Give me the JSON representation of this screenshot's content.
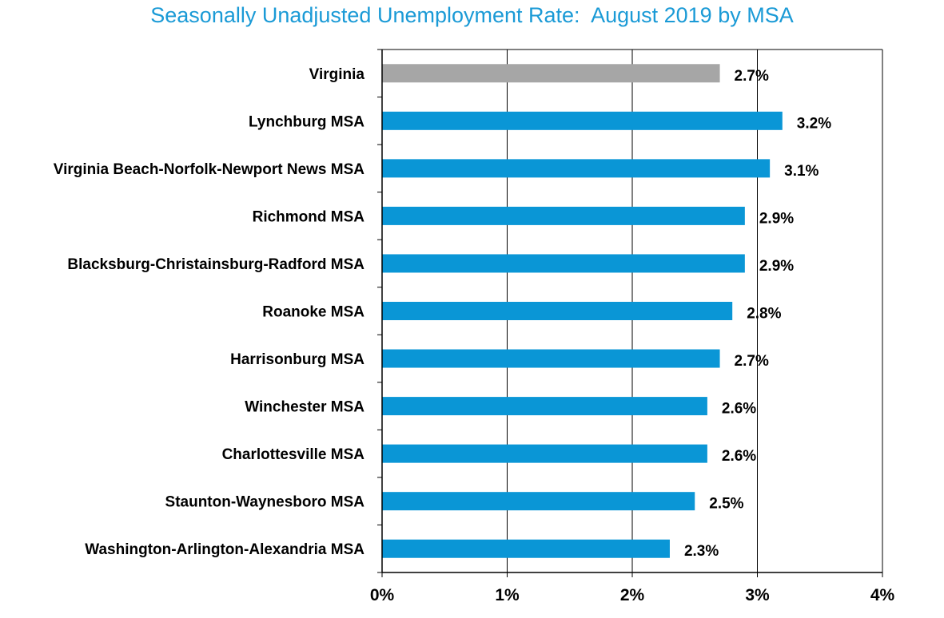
{
  "chart_data": {
    "type": "bar",
    "orientation": "horizontal",
    "title": "Seasonally Unadjusted Unemployment Rate:  August 2019 by MSA",
    "xlabel": "",
    "ylabel": "",
    "xlim": [
      0,
      4
    ],
    "grid": true,
    "legend": "none",
    "colors": {
      "state": "#a6a6a6",
      "msa": "#0a96d6",
      "title": "#1a9ad6",
      "grid": "#000000"
    },
    "categories": [
      "Virginia",
      "Lynchburg MSA",
      "Virginia Beach-Norfolk-Newport News MSA",
      "Richmond MSA",
      "Blacksburg-Christainsburg-Radford MSA",
      "Roanoke MSA",
      "Harrisonburg MSA",
      "Winchester MSA",
      "Charlottesville MSA",
      "Staunton-Waynesboro MSA",
      "Washington-Arlington-Alexandria MSA"
    ],
    "values": [
      2.7,
      3.2,
      3.1,
      2.9,
      2.9,
      2.8,
      2.7,
      2.6,
      2.6,
      2.5,
      2.3
    ],
    "value_labels": [
      "2.7%",
      "3.2%",
      "3.1%",
      "2.9%",
      "2.9%",
      "2.8%",
      "2.7%",
      "2.6%",
      "2.6%",
      "2.5%",
      "2.3%"
    ],
    "highlight_index": 0,
    "x_ticks": [
      0,
      1,
      2,
      3,
      4
    ],
    "x_tick_labels": [
      "0%",
      "1%",
      "2%",
      "3%",
      "4%"
    ]
  }
}
